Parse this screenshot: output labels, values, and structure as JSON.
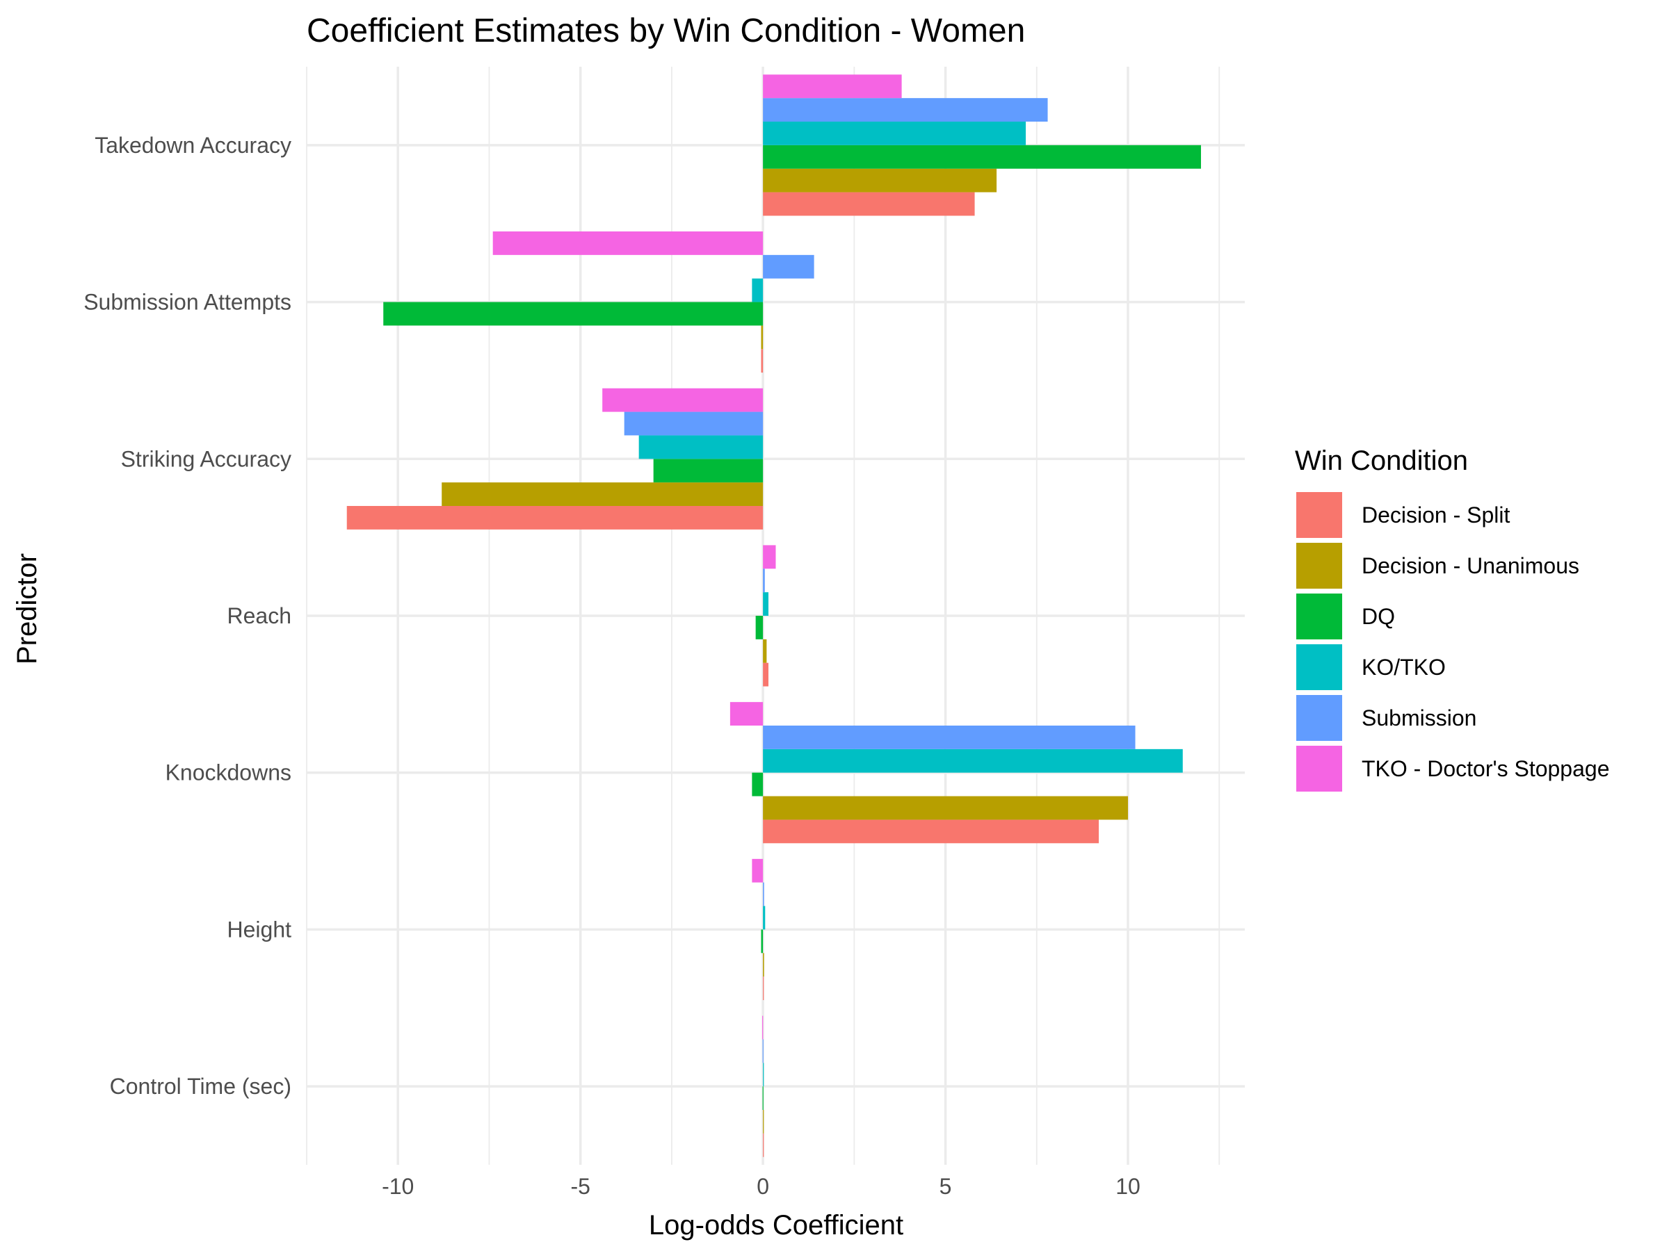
{
  "chart_data": {
    "type": "bar",
    "orientation": "horizontal",
    "title": "Coefficient Estimates by Win Condition - Women",
    "xlabel": "Log-odds Coefficient",
    "ylabel": "Predictor",
    "xlim": [
      -12.5,
      13.2
    ],
    "xticks": [
      -10,
      -5,
      0,
      5,
      10
    ],
    "xtick_labels": [
      "-10",
      "-5",
      "0",
      "5",
      "10"
    ],
    "grid": true,
    "categories": [
      "Takedown Accuracy",
      "Submission Attempts",
      "Striking Accuracy",
      "Reach",
      "Knockdowns",
      "Height",
      "Control Time (sec)"
    ],
    "legend_title": "Win Condition",
    "legend_position": "right",
    "series": [
      {
        "name": "Decision - Split",
        "color": "#F8766D",
        "values": [
          5.8,
          -0.05,
          -11.4,
          0.15,
          9.2,
          0.0,
          0.0
        ]
      },
      {
        "name": "Decision - Unanimous",
        "color": "#B79F00",
        "values": [
          6.4,
          -0.05,
          -8.8,
          0.1,
          10.0,
          0.03,
          0.0
        ]
      },
      {
        "name": "DQ",
        "color": "#00BA38",
        "values": [
          12.0,
          -10.4,
          -3.0,
          -0.2,
          -0.3,
          -0.05,
          -0.01
        ]
      },
      {
        "name": "KO/TKO",
        "color": "#00BFC4",
        "values": [
          7.2,
          -0.3,
          -3.4,
          0.15,
          11.5,
          0.06,
          0.0
        ]
      },
      {
        "name": "Submission",
        "color": "#619CFF",
        "values": [
          7.8,
          1.4,
          -3.8,
          0.05,
          10.2,
          0.03,
          -0.01
        ]
      },
      {
        "name": "TKO - Doctor's Stoppage",
        "color": "#F564E3",
        "values": [
          3.8,
          -7.4,
          -4.4,
          0.35,
          -0.9,
          -0.3,
          -0.02
        ]
      }
    ]
  }
}
